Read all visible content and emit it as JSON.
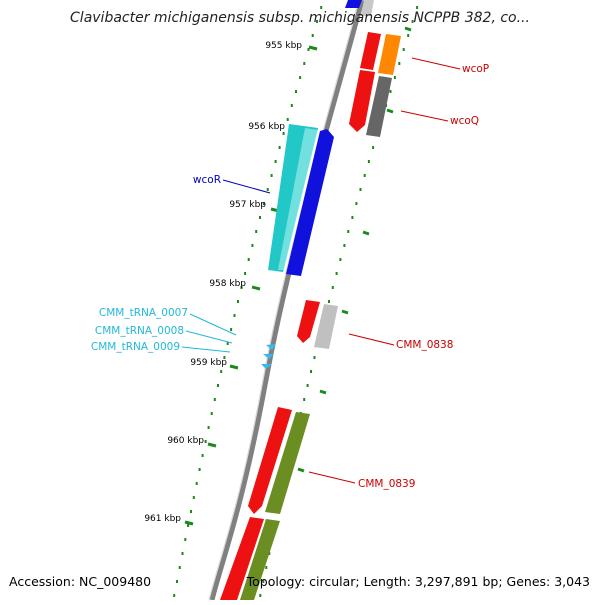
{
  "title": "Clavibacter michiganensis subsp. michiganensis NCPPB 382, co...",
  "footer": {
    "accession": "Accession: NC_009480",
    "summary": "Topology: circular; Length: 3,297,891 bp; Genes: 3,043"
  },
  "ticks": [
    {
      "label": "955 kbp",
      "kbp": 955
    },
    {
      "label": "956 kbp",
      "kbp": 956
    },
    {
      "label": "957 kbp",
      "kbp": 957
    },
    {
      "label": "958 kbp",
      "kbp": 958
    },
    {
      "label": "959 kbp",
      "kbp": 959
    },
    {
      "label": "960 kbp",
      "kbp": 960
    },
    {
      "label": "961 kbp",
      "kbp": 961
    }
  ],
  "gene_labels": [
    {
      "name": "wcoP",
      "color": "#cc0000"
    },
    {
      "name": "wcoQ",
      "color": "#cc0000"
    },
    {
      "name": "wcoR",
      "color": "#0000bb"
    },
    {
      "name": "CMM_tRNA_0007",
      "color": "#22b8d8"
    },
    {
      "name": "CMM_tRNA_0008",
      "color": "#22b8d8"
    },
    {
      "name": "CMM_tRNA_0009",
      "color": "#22b8d8"
    },
    {
      "name": "CMM_0838",
      "color": "#cc0000"
    },
    {
      "name": "CMM_0839",
      "color": "#cc0000"
    }
  ],
  "colors": {
    "backbone": "#808080",
    "tick": "#1a8a1a",
    "red": "#ee1111",
    "blue": "#1111dd",
    "cyan": "#22c8c8",
    "orange": "#ff8800",
    "dark_gray": "#666666",
    "light_gray": "#c0c0c0",
    "olive": "#6b8e23",
    "trna": "#33bbee"
  }
}
